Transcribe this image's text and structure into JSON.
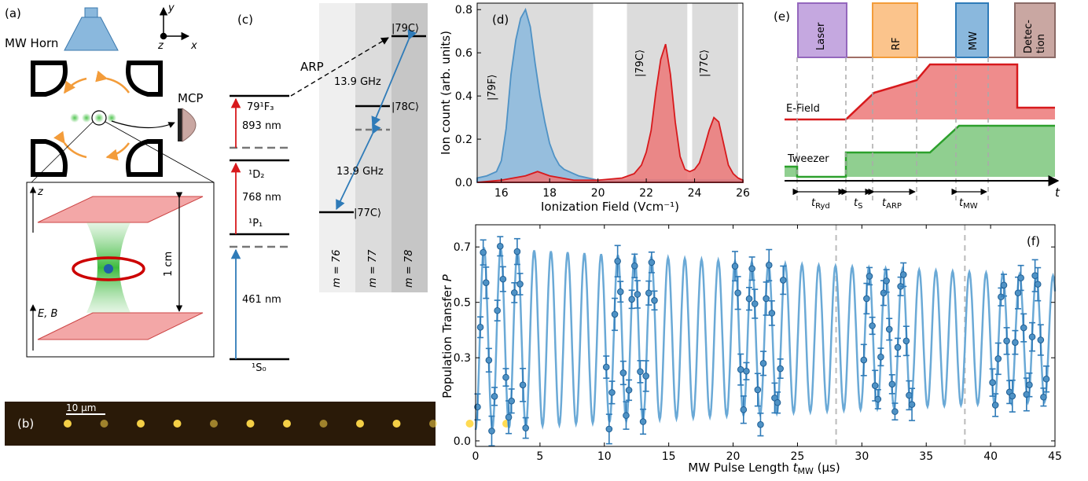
{
  "colors": {
    "blue": "#4f92c5",
    "blue_fill": "#8ab8dd",
    "red": "#d7191c",
    "red_fill": "#ec7878",
    "green": "#2ca02c",
    "green_fill": "#7cc77c",
    "brown": "#a06e66",
    "orange": "#f39c3a",
    "purple": "#9467bd",
    "gray_band": "#dcdcdc"
  },
  "panel_a": {
    "label": "(a)",
    "horn": "MW Horn",
    "mcp": "MCP",
    "axis_y": "y",
    "axis_x": "x",
    "axis_z": "z",
    "inset_z": "z",
    "inset_eb": "E, B",
    "inset_scale": "1 cm"
  },
  "panel_b": {
    "label": "(b)",
    "scalebar": "10 µm",
    "spot_count": 13
  },
  "panel_c": {
    "label": "(c)",
    "levels": [
      "¹S₀",
      "¹P₁",
      "¹D₂",
      "79¹F₃"
    ],
    "wavelengths": [
      "461 nm",
      "768 nm",
      "893 nm"
    ],
    "arp": "ARP",
    "ghz_top": "13.9 GHz",
    "ghz_bottom": "13.9 GHz",
    "states": [
      "|79C⟩",
      "|78C⟩",
      "|77C⟩"
    ],
    "m_labels": [
      "m = 76",
      "m = 77",
      "m = 78"
    ]
  },
  "panel_d": {
    "label": "(d)",
    "region_labels": [
      "|79F⟩",
      "|79C⟩",
      "|77C⟩"
    ]
  },
  "panel_e": {
    "label": "(e)",
    "pulses": [
      "Laser",
      "RF",
      "MW",
      "Detec-tion"
    ],
    "pulse_line1": [
      "Laser",
      "RF",
      "MW",
      "Detec-"
    ],
    "pulse_line2": [
      "",
      "",
      "",
      "tion"
    ],
    "efield": "E-Field",
    "tweezer": "Tweezer",
    "t_axis": "t",
    "intervals": [
      "t_Ryd",
      "t_S",
      "t_ARP",
      "t_MW"
    ],
    "interval_main": [
      "t",
      "t",
      "t",
      "t"
    ],
    "interval_sub": [
      "Ryd",
      "S",
      "ARP",
      "MW"
    ]
  },
  "panel_f": {
    "label": "(f)"
  },
  "chart_data": [
    {
      "type": "area",
      "panel": "d",
      "xlabel": "Ionization Field (Vcm⁻¹)",
      "ylabel": "Ion count (arb. units)",
      "xlim": [
        15,
        26
      ],
      "ylim": [
        0,
        0.83
      ],
      "xticks": [
        16,
        18,
        20,
        22,
        24,
        26
      ],
      "yticks": [
        0.0,
        0.2,
        0.4,
        0.6,
        0.8
      ],
      "shaded_regions": [
        [
          15.0,
          19.8
        ],
        [
          21.2,
          23.7
        ],
        [
          23.9,
          25.8
        ]
      ],
      "series": [
        {
          "x": [
            15.0,
            15.4,
            15.8,
            16.0,
            16.2,
            16.4,
            16.6,
            16.8,
            17.0,
            17.2,
            17.4,
            17.6,
            17.8,
            18.0,
            18.2,
            18.4,
            18.6,
            18.8,
            19.0,
            19.2,
            19.6,
            20.0,
            20.5,
            21.0,
            21.5,
            22.0,
            23.0,
            24.0,
            25.0,
            26.0
          ],
          "y": [
            0.02,
            0.03,
            0.05,
            0.1,
            0.25,
            0.5,
            0.66,
            0.76,
            0.8,
            0.72,
            0.55,
            0.4,
            0.28,
            0.18,
            0.12,
            0.08,
            0.06,
            0.05,
            0.04,
            0.03,
            0.02,
            0.01,
            0.01,
            0.01,
            0.01,
            0.01,
            0.01,
            0.01,
            0.01,
            0.01
          ]
        },
        {
          "x": [
            15.0,
            16.0,
            17.0,
            17.5,
            18.0,
            19.0,
            20.0,
            21.0,
            21.5,
            21.8,
            22.0,
            22.2,
            22.4,
            22.6,
            22.8,
            23.0,
            23.2,
            23.4,
            23.6,
            23.8,
            24.0,
            24.2,
            24.4,
            24.6,
            24.8,
            25.0,
            25.2,
            25.4,
            25.6,
            25.8,
            26.0
          ],
          "y": [
            0.0,
            0.01,
            0.03,
            0.05,
            0.03,
            0.01,
            0.01,
            0.02,
            0.04,
            0.08,
            0.14,
            0.24,
            0.42,
            0.57,
            0.64,
            0.5,
            0.28,
            0.12,
            0.06,
            0.05,
            0.06,
            0.09,
            0.16,
            0.24,
            0.3,
            0.28,
            0.18,
            0.08,
            0.04,
            0.02,
            0.01
          ]
        }
      ]
    },
    {
      "type": "line",
      "panel": "e",
      "xlabel": "t",
      "series": [
        {
          "name": "E-Field",
          "points": [
            [
              0,
              0.0
            ],
            [
              2,
              0.0
            ],
            [
              2.6,
              0.25
            ],
            [
              4,
              0.45
            ],
            [
              4.5,
              0.75
            ],
            [
              7,
              0.75
            ],
            [
              7,
              0.05
            ],
            [
              8,
              0.05
            ]
          ]
        },
        {
          "name": "Tweezer",
          "points": [
            [
              0,
              0.35
            ],
            [
              0.6,
              0.35
            ],
            [
              0.6,
              0.0
            ],
            [
              1.8,
              0.0
            ],
            [
              1.8,
              1.0
            ],
            [
              3.4,
              1.0
            ],
            [
              3.4,
              1.0
            ],
            [
              4.6,
              1.0
            ],
            [
              5.2,
              1.8
            ],
            [
              8,
              1.8
            ]
          ]
        }
      ]
    },
    {
      "type": "scatter",
      "panel": "f",
      "xlabel": "MW Pulse Length t_MW (µs)",
      "ylabel": "Population Transfer P",
      "xlim": [
        0,
        45
      ],
      "ylim": [
        -0.02,
        0.78
      ],
      "xticks": [
        0,
        5,
        10,
        15,
        20,
        25,
        30,
        35,
        40,
        45
      ],
      "yticks": [
        0.0,
        0.3,
        0.5,
        0.7
      ],
      "vlines": [
        28,
        38
      ],
      "fit": {
        "period_us": 1.3,
        "min": 0.04,
        "max": 0.7
      },
      "segments": [
        [
          0.0,
          4.0
        ],
        [
          10.0,
          14.0
        ],
        [
          20.0,
          24.0
        ],
        [
          30.0,
          34.0
        ],
        [
          40.0,
          44.5
        ]
      ]
    }
  ]
}
